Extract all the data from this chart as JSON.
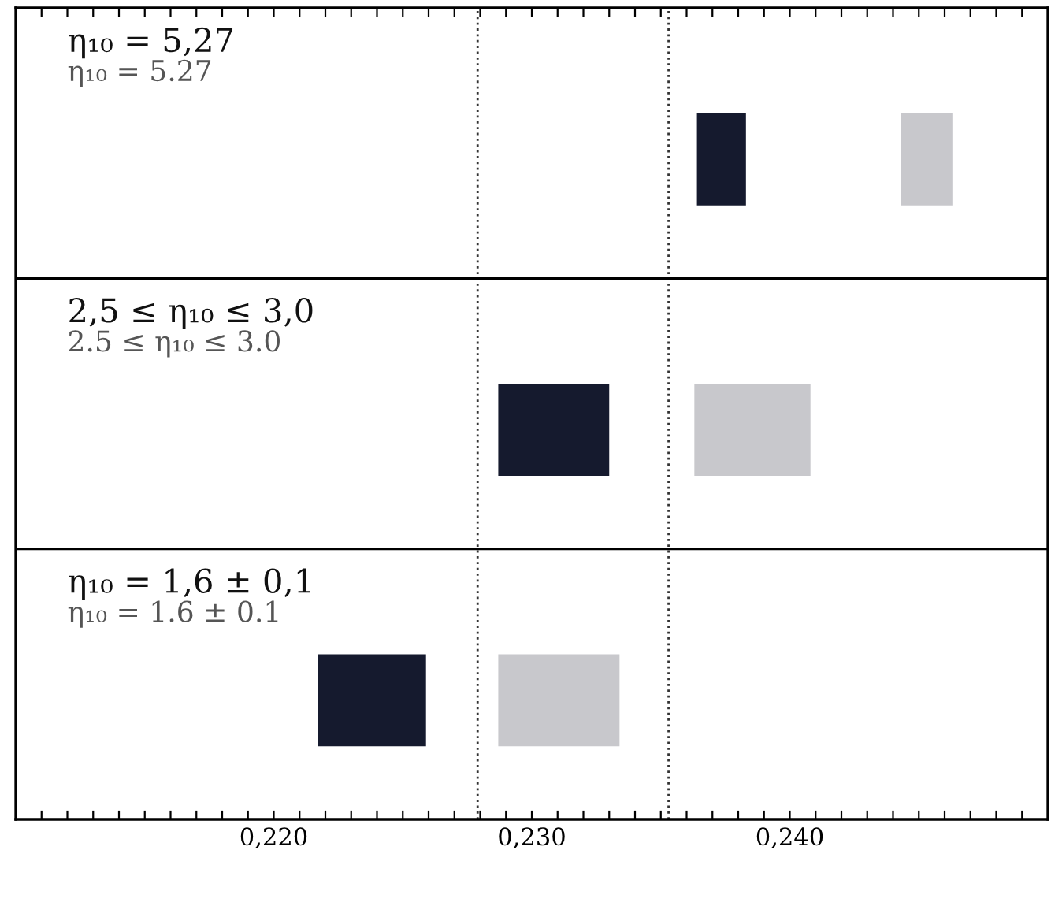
{
  "chart_data": {
    "type": "bar",
    "orientation": "horizontal",
    "categories": [
      null,
      null,
      null
    ],
    "tick_labels": "x",
    "series": [
      {
        "color": "#151a2e",
        "base": [
          0.2364,
          0.2287,
          0.2217
        ],
        "values": [
          0.0019,
          0.0043,
          0.0042
        ]
      },
      {
        "color": "#c8c8cc",
        "base": [
          0.2443,
          0.2363,
          0.2287
        ],
        "values": [
          0.002,
          0.0045,
          0.0047
        ]
      }
    ],
    "xlim": [
      0.21,
      0.25
    ],
    "xticks": [
      {
        "value": 0.211,
        "label": null
      },
      {
        "value": 0.212,
        "label": null
      },
      {
        "value": 0.213,
        "label": null
      },
      {
        "value": 0.214,
        "label": null
      },
      {
        "value": 0.215,
        "label": null
      },
      {
        "value": 0.216,
        "label": null
      },
      {
        "value": 0.217,
        "label": null
      },
      {
        "value": 0.218,
        "label": null
      },
      {
        "value": 0.219,
        "label": null
      },
      {
        "value": 0.22,
        "label": "0,220"
      },
      {
        "value": 0.221,
        "label": null
      },
      {
        "value": 0.222,
        "label": null
      },
      {
        "value": 0.223,
        "label": null
      },
      {
        "value": 0.224,
        "label": null
      },
      {
        "value": 0.225,
        "label": null
      },
      {
        "value": 0.226,
        "label": null
      },
      {
        "value": 0.227,
        "label": null
      },
      {
        "value": 0.228,
        "label": null
      },
      {
        "value": 0.229,
        "label": null
      },
      {
        "value": 0.23,
        "label": "0,230"
      },
      {
        "value": 0.231,
        "label": null
      },
      {
        "value": 0.232,
        "label": null
      },
      {
        "value": 0.233,
        "label": null
      },
      {
        "value": 0.234,
        "label": null
      },
      {
        "value": 0.235,
        "label": null
      },
      {
        "value": 0.236,
        "label": null
      },
      {
        "value": 0.237,
        "label": null
      },
      {
        "value": 0.238,
        "label": null
      },
      {
        "value": 0.239,
        "label": null
      },
      {
        "value": 0.24,
        "label": "0,240"
      },
      {
        "value": 0.241,
        "label": null
      },
      {
        "value": 0.242,
        "label": null
      },
      {
        "value": 0.243,
        "label": null
      },
      {
        "value": 0.244,
        "label": null
      },
      {
        "value": 0.245,
        "label": null
      },
      {
        "value": 0.246,
        "label": null
      },
      {
        "value": 0.247,
        "label": null
      },
      {
        "value": 0.248,
        "label": null
      },
      {
        "value": 0.249,
        "label": null
      }
    ],
    "ref_lines": [
      {
        "axis": "x",
        "value": 0.2279,
        "line_style": "dotted"
      },
      {
        "axis": "x",
        "value": 0.2353,
        "line_style": "dotted"
      }
    ],
    "annotations": [
      "η₁₀ = 5,27",
      "η₁₀ = 5.27",
      "2,5 ≤ η₁₀ ≤ 3,0",
      "2.5 ≤ η₁₀ ≤ 3.0",
      "η₁₀ = 1,6 ± 0,1",
      "η₁₀ = 1.6 ± 0.1"
    ]
  }
}
